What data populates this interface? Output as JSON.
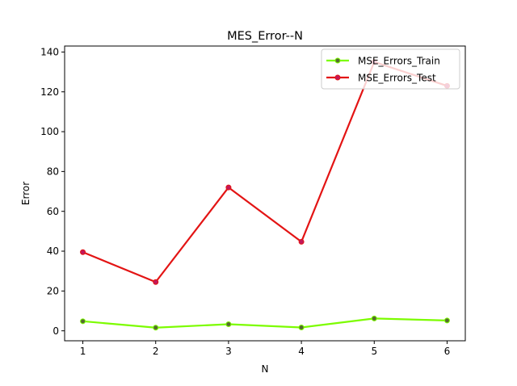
{
  "chart_data": {
    "type": "line",
    "title": "MES_Error--N",
    "xlabel": "N",
    "ylabel": "Error",
    "x": [
      1,
      2,
      3,
      4,
      5,
      6
    ],
    "xticks": [
      "1",
      "2",
      "3",
      "4",
      "5",
      "6"
    ],
    "yticks": [
      "0",
      "20",
      "40",
      "60",
      "80",
      "100",
      "120",
      "140"
    ],
    "xlim": [
      0.75,
      6.25
    ],
    "ylim": [
      -5,
      143
    ],
    "grid": false,
    "legend_position": "upper right",
    "series": [
      {
        "name": "MSE_Errors_Train",
        "values": [
          4.8,
          1.6,
          3.3,
          1.7,
          6.2,
          5.2
        ],
        "line_color": "#7cfc00",
        "marker_color": "#556b2f"
      },
      {
        "name": "MSE_Errors_Test",
        "values": [
          39.5,
          24.5,
          72.0,
          44.7,
          135.0,
          123.0
        ],
        "line_color": "#e31414",
        "marker_color": "#c2185b"
      }
    ]
  }
}
